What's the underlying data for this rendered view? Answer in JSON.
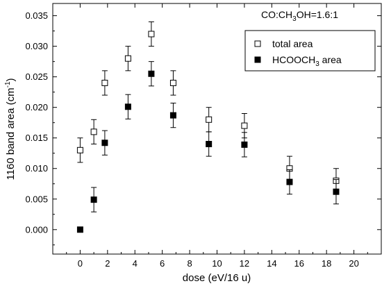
{
  "chart_data": {
    "type": "scatter",
    "title": "",
    "annotation": {
      "parts": [
        {
          "t": "CO:CH",
          "sub": false
        },
        {
          "t": "3",
          "sub": true
        },
        {
          "t": "OH=1.6:1",
          "sub": false
        }
      ]
    },
    "xlabel": "dose (eV/16 u)",
    "ylabel": {
      "parts": [
        {
          "t": "1160 band area (cm",
          "sup": false
        },
        {
          "t": "-1",
          "sup": true
        },
        {
          "t": ")",
          "sup": false
        }
      ]
    },
    "xlim": [
      -2,
      22
    ],
    "ylim": [
      -0.004,
      0.037
    ],
    "x_ticks": [
      {
        "v": 0,
        "label": "0"
      },
      {
        "v": 2,
        "label": "2"
      },
      {
        "v": 4,
        "label": "4"
      },
      {
        "v": 6,
        "label": "6"
      },
      {
        "v": 8,
        "label": "8"
      },
      {
        "v": 10,
        "label": "10"
      },
      {
        "v": 12,
        "label": "12"
      },
      {
        "v": 14,
        "label": "14"
      },
      {
        "v": 16,
        "label": "16"
      },
      {
        "v": 18,
        "label": "18"
      },
      {
        "v": 20,
        "label": "20"
      }
    ],
    "y_ticks": [
      {
        "v": 0.0,
        "label": "0.000"
      },
      {
        "v": 0.005,
        "label": "0.005"
      },
      {
        "v": 0.01,
        "label": "0.010"
      },
      {
        "v": 0.015,
        "label": "0.015"
      },
      {
        "v": 0.02,
        "label": "0.020"
      },
      {
        "v": 0.025,
        "label": "0.025"
      },
      {
        "v": 0.03,
        "label": "0.030"
      },
      {
        "v": 0.035,
        "label": "0.035"
      }
    ],
    "grid": false,
    "legend_position": "top-right",
    "series": [
      {
        "name": "total area",
        "name_parts": [
          {
            "t": "total area",
            "sub": false
          }
        ],
        "marker": "open-square",
        "color": "#000000",
        "x": [
          0,
          1,
          1.8,
          3.5,
          5.2,
          6.8,
          9.4,
          12.0,
          15.3,
          18.7
        ],
        "y": [
          0.013,
          0.016,
          0.024,
          0.028,
          0.032,
          0.024,
          0.018,
          0.017,
          0.01,
          0.008
        ],
        "err": [
          0.002,
          0.002,
          0.002,
          0.002,
          0.002,
          0.002,
          0.002,
          0.002,
          0.002,
          0.002
        ]
      },
      {
        "name": "HCOOCH3 area",
        "name_parts": [
          {
            "t": "HCOOCH",
            "sub": false
          },
          {
            "t": "3",
            "sub": true
          },
          {
            "t": " area",
            "sub": false
          }
        ],
        "marker": "filled-square",
        "color": "#000000",
        "x": [
          0,
          1,
          1.8,
          3.5,
          5.2,
          6.8,
          9.4,
          12.0,
          15.3,
          18.7
        ],
        "y": [
          0.0,
          0.0049,
          0.0142,
          0.0201,
          0.0255,
          0.0187,
          0.014,
          0.0139,
          0.0078,
          0.0062
        ],
        "err": [
          0,
          0.002,
          0.002,
          0.002,
          0.002,
          0.002,
          0.002,
          0.002,
          0.002,
          0.002
        ]
      }
    ]
  }
}
